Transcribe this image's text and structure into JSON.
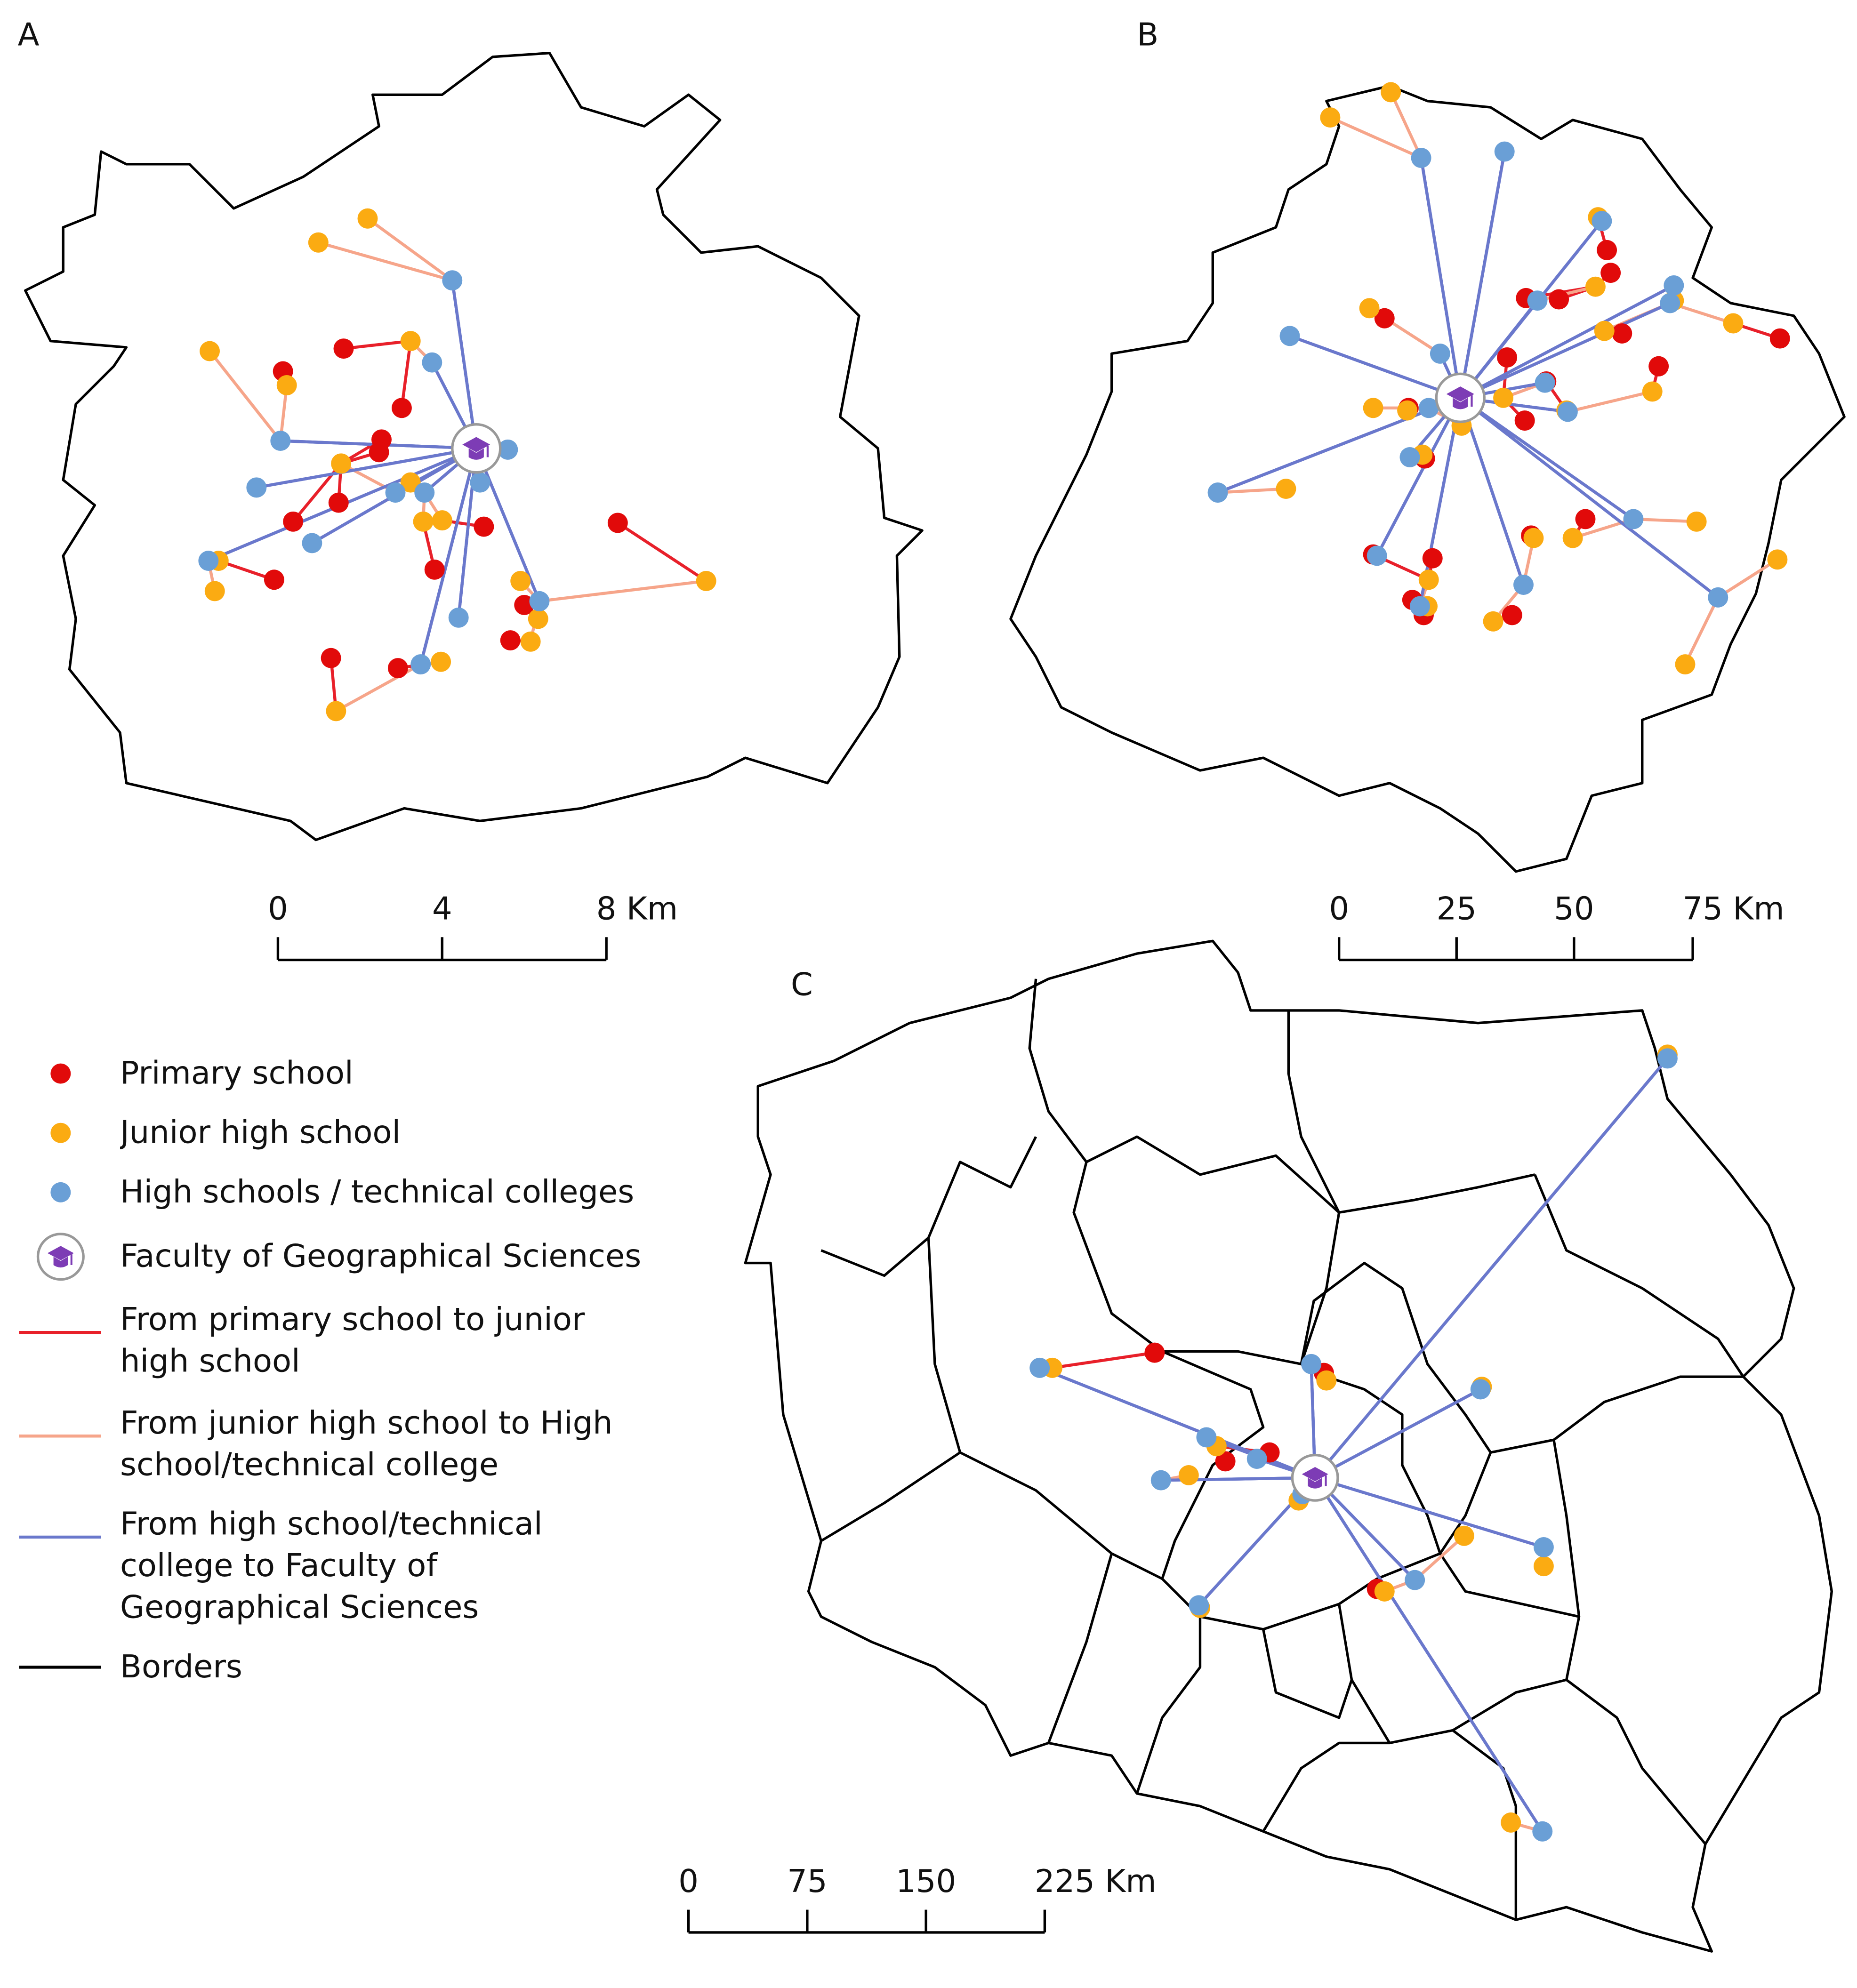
{
  "panels": [
    {
      "label": "A",
      "scale_bar": [
        "0",
        "4",
        "8 Km"
      ]
    },
    {
      "label": "B",
      "scale_bar": [
        "0",
        "25",
        "50",
        "75 Km"
      ]
    },
    {
      "label": "C",
      "scale_bar": [
        "0",
        "75",
        "150",
        "225 Km"
      ]
    }
  ],
  "legend": {
    "items": [
      "Primary school",
      "Junior high school",
      "High schools / technical colleges",
      "Faculty of Geographical Sciences",
      "From primary school to junior high school",
      "From junior high school to High school/technical college",
      "From high school/technical college to Faculty of Geographical Sciences",
      "Borders"
    ]
  }
}
